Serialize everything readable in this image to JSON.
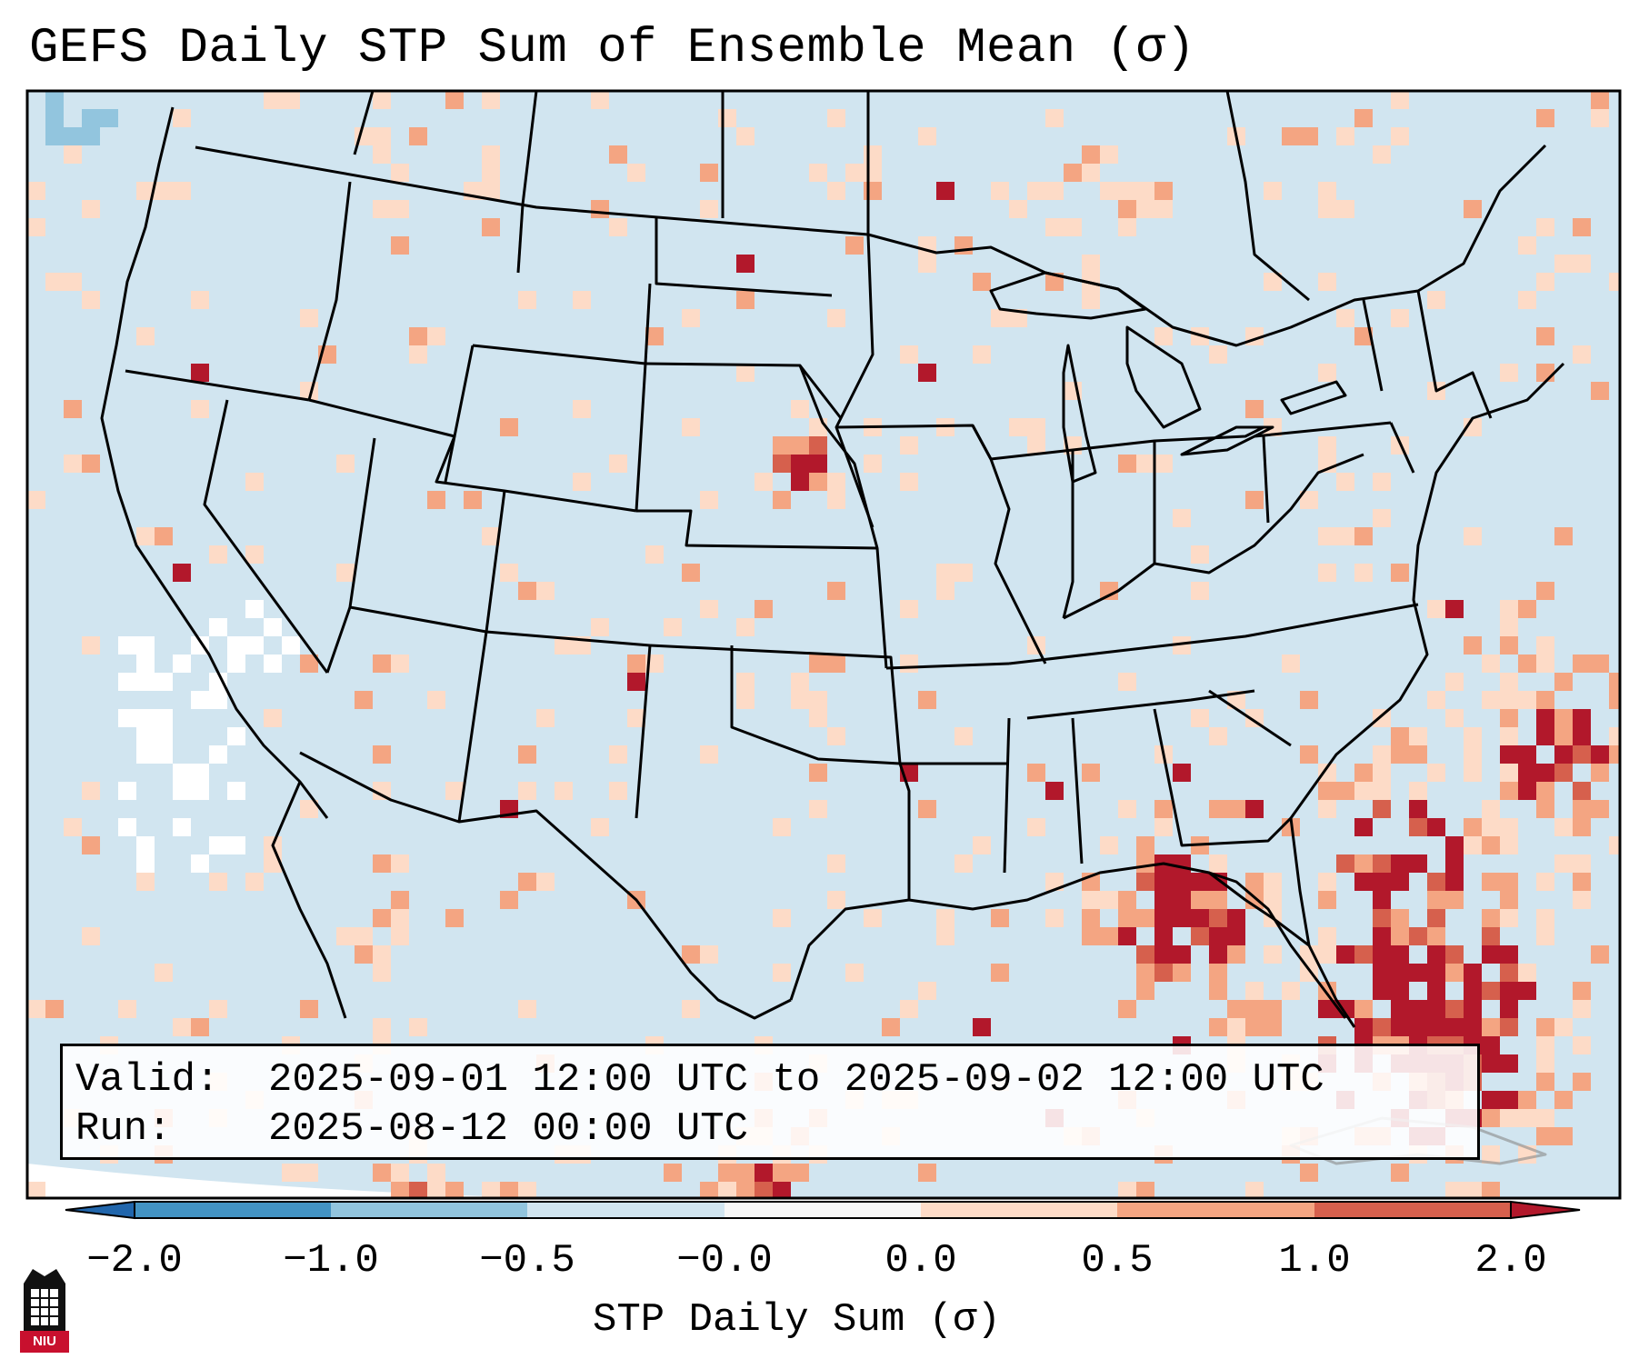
{
  "title": "GEFS Daily STP Sum of Ensemble Mean (σ)",
  "info": {
    "valid_label": "Valid:",
    "valid_value": "2025-09-01 12:00 UTC to 2025-09-02 12:00 UTC",
    "run_label": "Run:",
    "run_value": "2025-08-12 00:00 UTC"
  },
  "colorbar": {
    "label": "STP Daily Sum (σ)",
    "ticks": [
      "−2.0",
      "−1.0",
      "−0.5",
      "−0.0",
      "0.0",
      "0.5",
      "1.0",
      "2.0"
    ],
    "colors": {
      "under": "#2166ac",
      "c1": "#4393c3",
      "c2": "#92c5de",
      "c3": "#d1e5f0",
      "c4": "#f7f7f7",
      "c5": "#fddbc7",
      "c6": "#f4a582",
      "c7": "#d6604d",
      "over": "#b2182b"
    }
  },
  "map_colors": {
    "background": "#d1e5f0",
    "pale": "#fddbc7",
    "light": "#f4a582",
    "medium": "#d6604d",
    "dark": "#b2182b",
    "white": "#ffffff",
    "negative": "#92c5de"
  },
  "logo": {
    "text": "NIU",
    "color": "#c8102e"
  }
}
